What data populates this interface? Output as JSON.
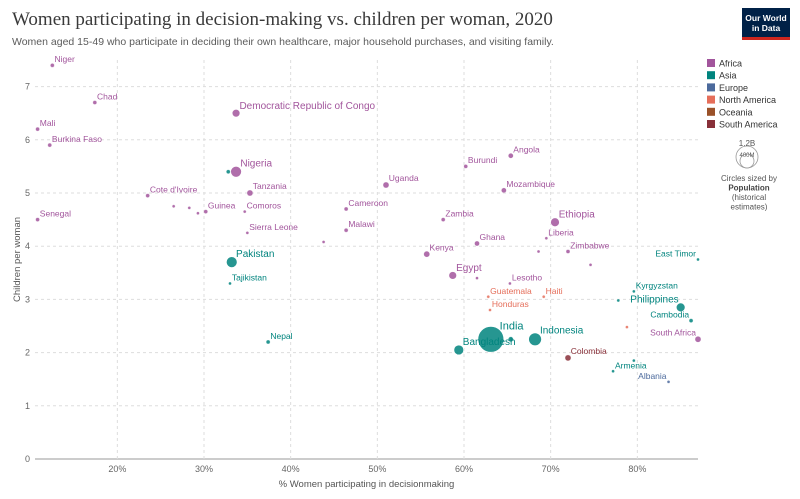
{
  "header": {
    "title": "Women participating in decision-making vs. children per woman, 2020",
    "subtitle": "Women aged 15-49 who participate in deciding their own healthcare, major household purchases, and visiting family.",
    "logo_line1": "Our World",
    "logo_line2": "in Data"
  },
  "chart_data": {
    "type": "scatter",
    "title": "Women participating in decision-making vs. children per woman, 2020",
    "xlabel": "% Women participating in decisionmaking",
    "ylabel": "Children per woman",
    "xlim": [
      10.5,
      87
    ],
    "ylim": [
      0,
      7.5
    ],
    "x_ticks": [
      20,
      30,
      40,
      50,
      60,
      70,
      80
    ],
    "x_tick_labels": [
      "20%",
      "30%",
      "40%",
      "50%",
      "60%",
      "70%",
      "80%"
    ],
    "y_ticks": [
      0,
      1,
      2,
      3,
      4,
      5,
      6,
      7
    ],
    "y_tick_labels": [
      "0",
      "1",
      "2",
      "3",
      "4",
      "5",
      "6",
      "7"
    ],
    "grid": true,
    "legend_position": "right",
    "regions": [
      {
        "name": "Africa",
        "color": "#a2559c"
      },
      {
        "name": "Asia",
        "color": "#00847e"
      },
      {
        "name": "Europe",
        "color": "#4c6a9c"
      },
      {
        "name": "North America",
        "color": "#e56e5a"
      },
      {
        "name": "Oceania",
        "color": "#9a5129"
      },
      {
        "name": "South America",
        "color": "#883039"
      }
    ],
    "size_legend": {
      "value": "1.2B",
      "value2": "400M",
      "line1": "Circles sized by",
      "line2": "Population",
      "line3": "(historical",
      "line4": "estimates)"
    },
    "points": [
      {
        "label": "Niger",
        "x": 12.5,
        "y": 7.4,
        "region": "Africa",
        "size": 2
      },
      {
        "label": "Chad",
        "x": 17.4,
        "y": 6.7,
        "region": "Africa",
        "size": 2
      },
      {
        "label": "Mali",
        "x": 10.8,
        "y": 6.2,
        "region": "Africa",
        "size": 2
      },
      {
        "label": "Burkina Faso",
        "x": 12.2,
        "y": 5.9,
        "region": "Africa",
        "size": 2
      },
      {
        "label": "Democratic Republic of Congo",
        "x": 33.7,
        "y": 6.5,
        "region": "Africa",
        "size": 4
      },
      {
        "label": "Nigeria",
        "x": 33.7,
        "y": 5.4,
        "region": "Africa",
        "size": 5.5
      },
      {
        "label": "",
        "x": 32.8,
        "y": 5.4,
        "region": "Asia",
        "size": 2
      },
      {
        "label": "Tanzania",
        "x": 35.3,
        "y": 5.0,
        "region": "Africa",
        "size": 3
      },
      {
        "label": "Cote d'Ivoire",
        "x": 23.5,
        "y": 4.95,
        "region": "Africa",
        "size": 2
      },
      {
        "label": "Guinea",
        "x": 30.2,
        "y": 4.65,
        "region": "Africa",
        "size": 2
      },
      {
        "label": "",
        "x": 26.5,
        "y": 4.75,
        "region": "Africa",
        "size": 1.5
      },
      {
        "label": "",
        "x": 28.3,
        "y": 4.72,
        "region": "Africa",
        "size": 1.5
      },
      {
        "label": "",
        "x": 29.3,
        "y": 4.62,
        "region": "Africa",
        "size": 1.5
      },
      {
        "label": "Comoros",
        "x": 34.7,
        "y": 4.65,
        "region": "Africa",
        "size": 1.5
      },
      {
        "label": "Senegal",
        "x": 10.8,
        "y": 4.5,
        "region": "Africa",
        "size": 2
      },
      {
        "label": "Sierra Leone",
        "x": 35.0,
        "y": 4.25,
        "region": "Africa",
        "size": 1.5
      },
      {
        "label": "",
        "x": 43.8,
        "y": 4.08,
        "region": "Africa",
        "size": 1.5
      },
      {
        "label": "Uganda",
        "x": 51.0,
        "y": 5.15,
        "region": "Africa",
        "size": 3
      },
      {
        "label": "Cameroon",
        "x": 46.4,
        "y": 4.7,
        "region": "Africa",
        "size": 2
      },
      {
        "label": "Malawi",
        "x": 46.4,
        "y": 4.3,
        "region": "Africa",
        "size": 2
      },
      {
        "label": "Zambia",
        "x": 57.6,
        "y": 4.5,
        "region": "Africa",
        "size": 2
      },
      {
        "label": "Burundi",
        "x": 60.2,
        "y": 5.5,
        "region": "Africa",
        "size": 2
      },
      {
        "label": "Angola",
        "x": 65.4,
        "y": 5.7,
        "region": "Africa",
        "size": 2.5
      },
      {
        "label": "Mozambique",
        "x": 64.6,
        "y": 5.05,
        "region": "Africa",
        "size": 2.5
      },
      {
        "label": "Ethiopia",
        "x": 70.5,
        "y": 4.45,
        "region": "Africa",
        "size": 4.5
      },
      {
        "label": "Liberia",
        "x": 69.5,
        "y": 4.15,
        "region": "Africa",
        "size": 1.5
      },
      {
        "label": "Ghana",
        "x": 61.5,
        "y": 4.05,
        "region": "Africa",
        "size": 2.5
      },
      {
        "label": "Kenya",
        "x": 55.7,
        "y": 3.85,
        "region": "Africa",
        "size": 3
      },
      {
        "label": "Egypt",
        "x": 58.7,
        "y": 3.45,
        "region": "Africa",
        "size": 4
      },
      {
        "label": "",
        "x": 61.5,
        "y": 3.4,
        "region": "Africa",
        "size": 1.5
      },
      {
        "label": "Zimbabwe",
        "x": 72.0,
        "y": 3.9,
        "region": "Africa",
        "size": 2
      },
      {
        "label": "",
        "x": 68.6,
        "y": 3.9,
        "region": "Africa",
        "size": 1.5
      },
      {
        "label": "",
        "x": 74.6,
        "y": 3.65,
        "region": "Africa",
        "size": 1.5
      },
      {
        "label": "Lesotho",
        "x": 65.3,
        "y": 3.3,
        "region": "Africa",
        "size": 1.5
      },
      {
        "label": "South Africa",
        "x": 87.0,
        "y": 2.25,
        "region": "Africa",
        "size": 3
      },
      {
        "label": "Pakistan",
        "x": 33.2,
        "y": 3.7,
        "region": "Asia",
        "size": 5.5
      },
      {
        "label": "Tajikistan",
        "x": 33.0,
        "y": 3.3,
        "region": "Asia",
        "size": 1.5
      },
      {
        "label": "Nepal",
        "x": 37.4,
        "y": 2.2,
        "region": "Asia",
        "size": 2
      },
      {
        "label": "India",
        "x": 63.1,
        "y": 2.25,
        "region": "Asia",
        "size": 13
      },
      {
        "label": "Bangladesh",
        "x": 59.4,
        "y": 2.05,
        "region": "Asia",
        "size": 5
      },
      {
        "label": "",
        "x": 65.4,
        "y": 2.25,
        "region": "Asia",
        "size": 2.5
      },
      {
        "label": "Indonesia",
        "x": 68.2,
        "y": 2.25,
        "region": "Asia",
        "size": 6.5
      },
      {
        "label": "East Timor",
        "x": 87.0,
        "y": 3.75,
        "region": "Asia",
        "size": 1.5
      },
      {
        "label": "Kyrgyzstan",
        "x": 79.6,
        "y": 3.15,
        "region": "Asia",
        "size": 1.5
      },
      {
        "label": "",
        "x": 77.8,
        "y": 2.98,
        "region": "Asia",
        "size": 1.5
      },
      {
        "label": "Philippines",
        "x": 85.0,
        "y": 2.85,
        "region": "Asia",
        "size": 4.5
      },
      {
        "label": "Cambodia",
        "x": 86.2,
        "y": 2.6,
        "region": "Asia",
        "size": 2
      },
      {
        "label": "Armenia",
        "x": 77.2,
        "y": 1.65,
        "region": "Asia",
        "size": 1.5
      },
      {
        "label": "",
        "x": 79.6,
        "y": 1.85,
        "region": "Asia",
        "size": 1.5
      },
      {
        "label": "Albania",
        "x": 83.6,
        "y": 1.45,
        "region": "Europe",
        "size": 1.5
      },
      {
        "label": "Guatemala",
        "x": 62.8,
        "y": 3.05,
        "region": "North America",
        "size": 1.5
      },
      {
        "label": "Haiti",
        "x": 69.2,
        "y": 3.05,
        "region": "North America",
        "size": 1.5
      },
      {
        "label": "Honduras",
        "x": 63.0,
        "y": 2.8,
        "region": "North America",
        "size": 1.5
      },
      {
        "label": "",
        "x": 78.8,
        "y": 2.48,
        "region": "North America",
        "size": 1.5
      },
      {
        "label": "Colombia",
        "x": 72.0,
        "y": 1.9,
        "region": "South America",
        "size": 3
      }
    ]
  }
}
